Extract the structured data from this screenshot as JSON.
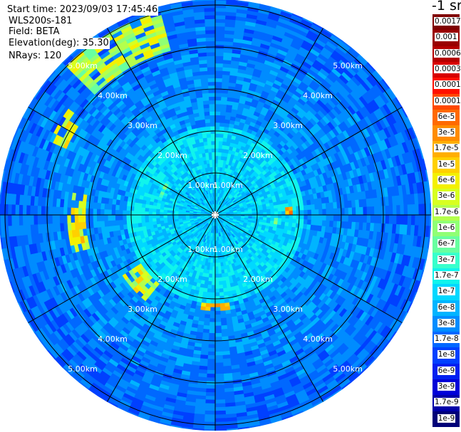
{
  "info": {
    "start_time": "Start time: 2023/09/03 17:45:46",
    "instrument": "WLS200s-181",
    "field": "Field: BETA",
    "elevation": "Elevation(deg): 35.30",
    "nrays": "NRays: 120"
  },
  "chart_data": {
    "type": "heatmap",
    "projection": "polar (PPI)",
    "field": "BETA",
    "nrays": 120,
    "range_rings_km": [
      1,
      2,
      3,
      4,
      5
    ],
    "ring_labels": [
      "1.00km",
      "2.00km",
      "3.00km",
      "4.00km",
      "5.00km"
    ],
    "spoke_interval_deg": 30,
    "colorbar": {
      "title": "-1 sr",
      "scale": "log",
      "ticks": [
        "0.0017",
        "0.001",
        "0.0006",
        "0.0003",
        "0.00017",
        "0.0001",
        "6e-5",
        "3e-5",
        "1.7e-5",
        "1e-5",
        "6e-6",
        "3e-6",
        "1.7e-6",
        "1e-6",
        "6e-7",
        "3e-7",
        "1.7e-7",
        "1e-7",
        "6e-8",
        "3e-8",
        "1.7e-8",
        "1e-8",
        "6e-9",
        "3e-9",
        "1.7e-9",
        "1e-9"
      ],
      "colors": [
        "#800000",
        "#9a0000",
        "#b40000",
        "#d80000",
        "#ff1000",
        "#ff4800",
        "#ff6a00",
        "#ff8c00",
        "#ffae00",
        "#ffd000",
        "#f4f000",
        "#d8ff20",
        "#b4ff4c",
        "#90ff74",
        "#68ffa0",
        "#38ffcc",
        "#10f4ec",
        "#00d8ff",
        "#00b4ff",
        "#008cff",
        "#0068ff",
        "#0040ff",
        "#0020f0",
        "#0000d8",
        "#0000a8",
        "#000078"
      ]
    }
  }
}
